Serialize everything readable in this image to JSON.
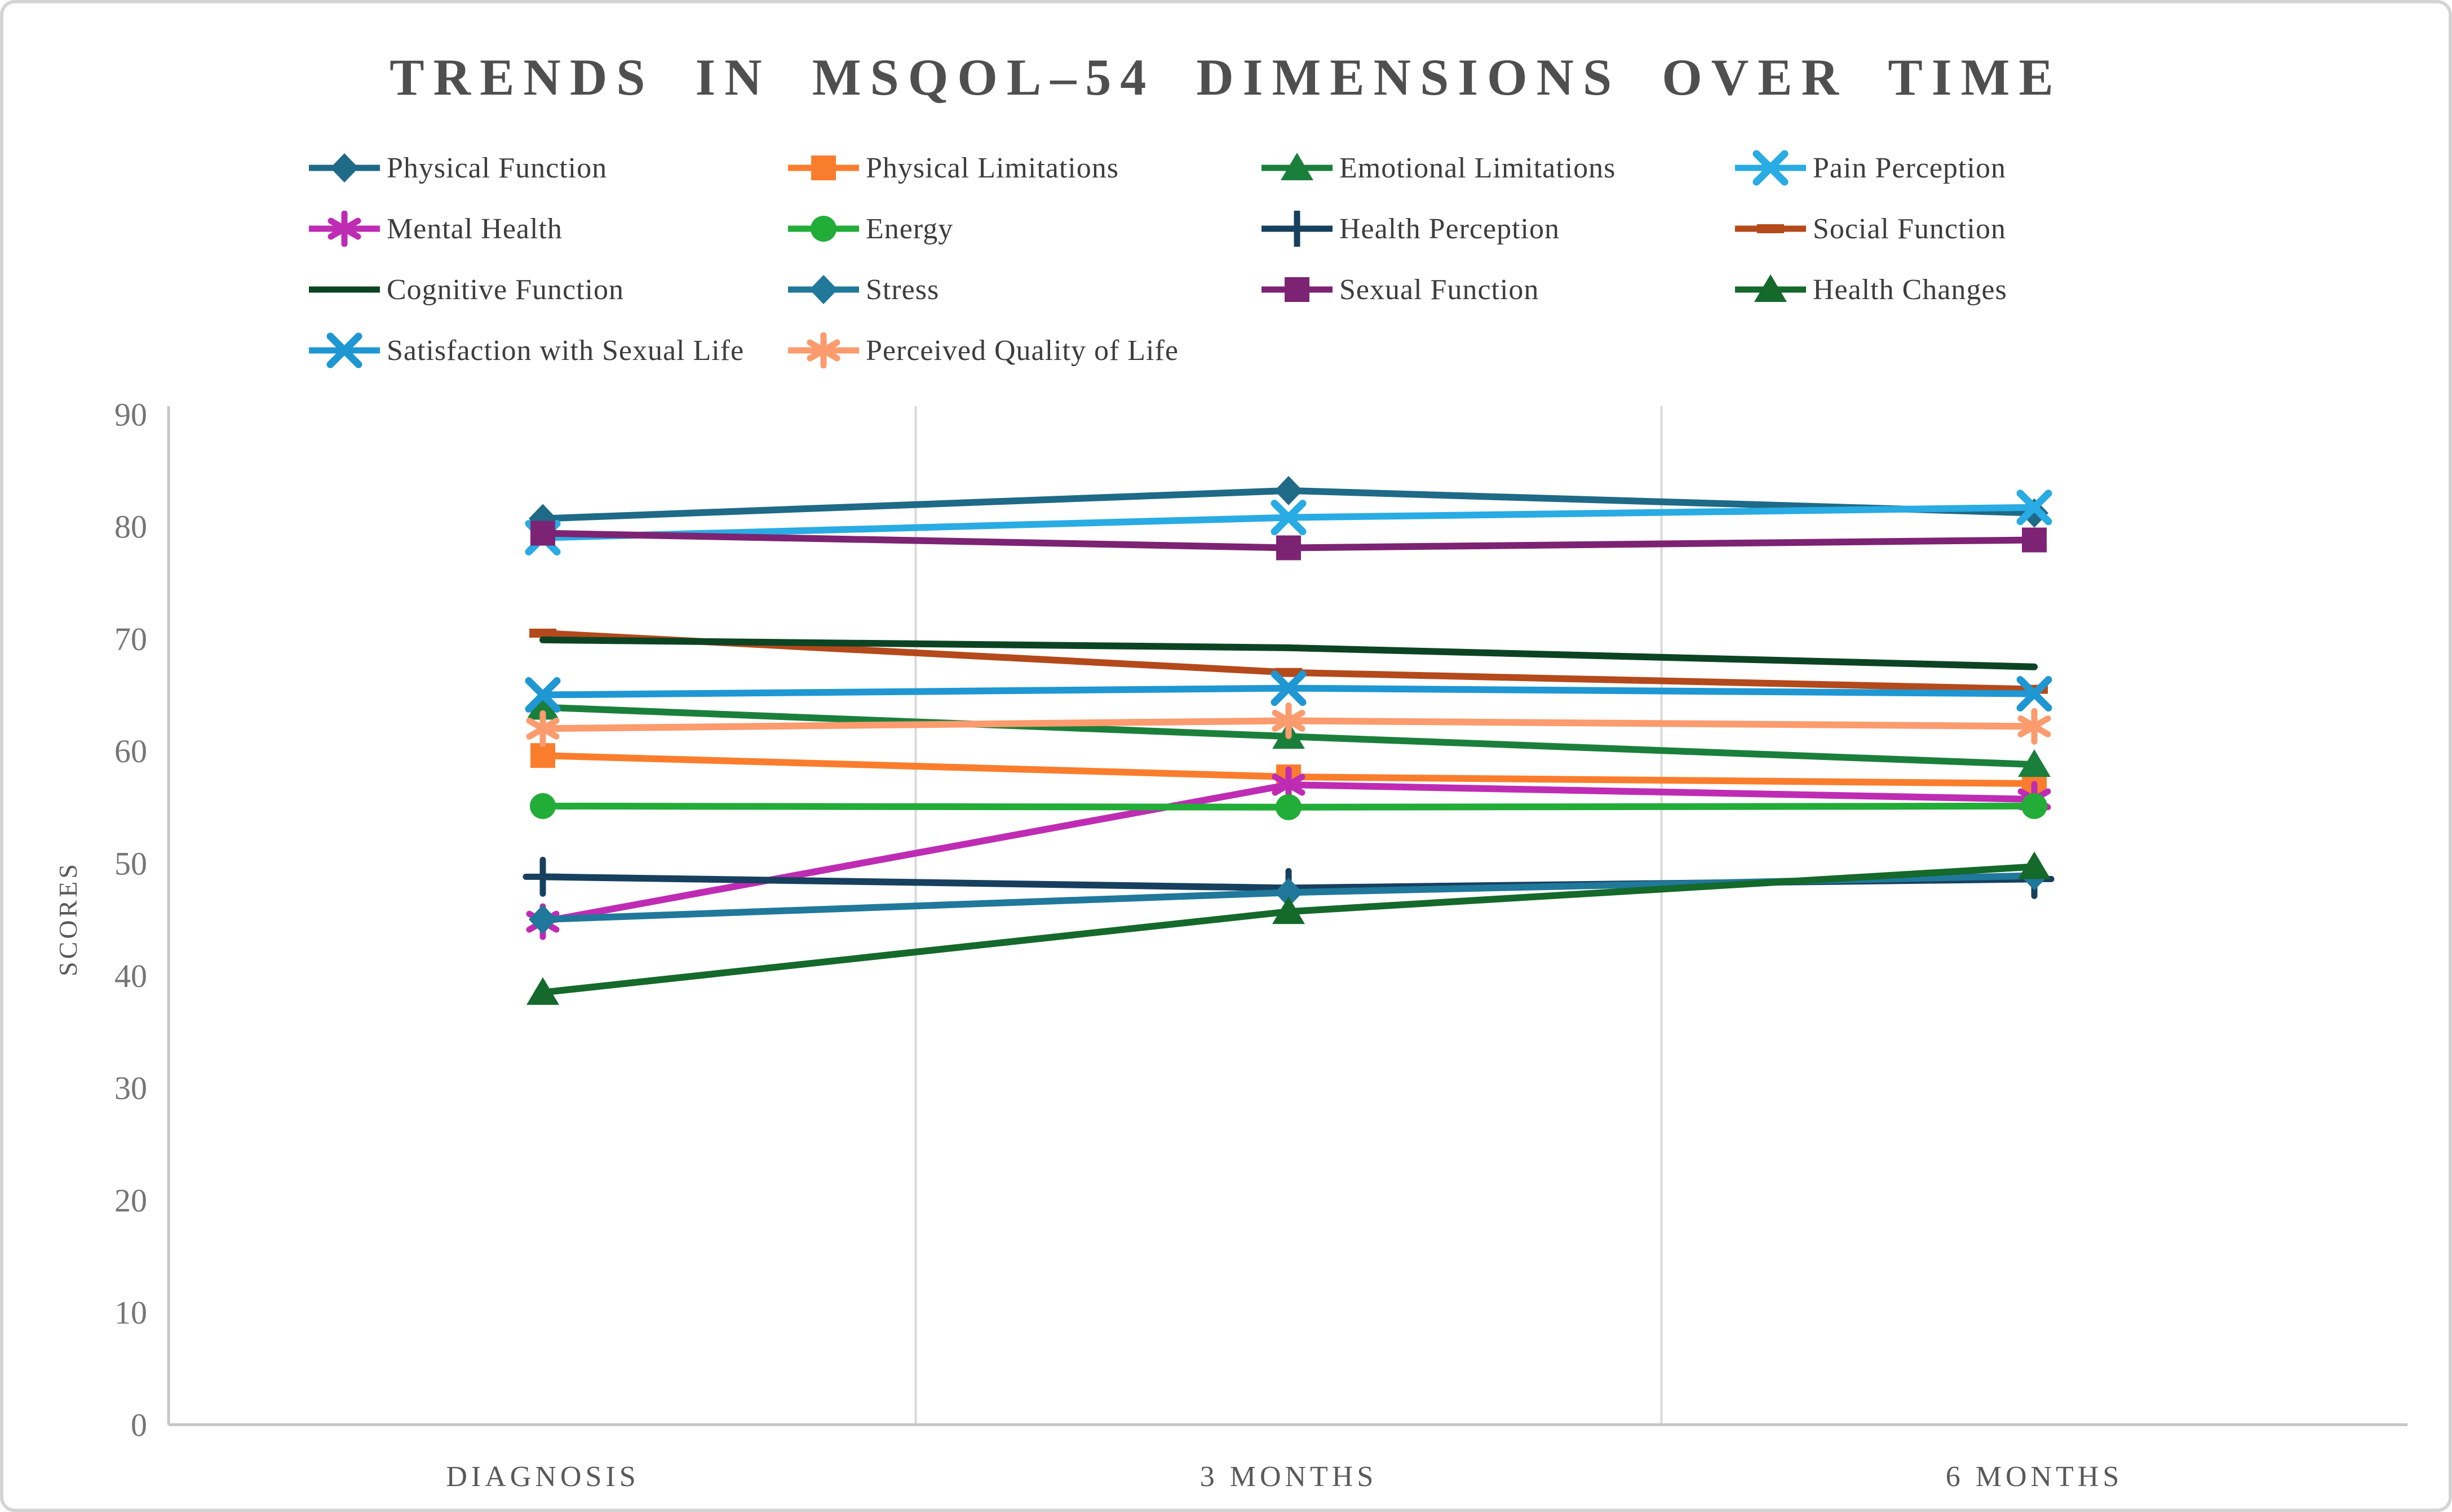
{
  "page": {
    "title": "TRENDS IN MSQOL–54 DIMENSIONS OVER TIME"
  },
  "chart_data": {
    "type": "line",
    "title": "TRENDS IN MSQOL–54 DIMENSIONS OVER TIME",
    "xlabel": "",
    "ylabel": "SCORES",
    "categories": [
      "DIAGNOSIS",
      "3 MONTHS",
      "6 MONTHS"
    ],
    "ylim": [
      0,
      90
    ],
    "yticks": [
      0,
      10,
      20,
      30,
      40,
      50,
      60,
      70,
      80,
      90
    ],
    "grid": "vertical-category-boundaries-only",
    "legend_position": "top",
    "axis_color": "#c6c6c6",
    "gridline_color": "#d9d9d9",
    "series": [
      {
        "name": "Physical Function",
        "color": "#1E6A87",
        "marker": "diamond",
        "values": [
          80.7,
          83.2,
          81.2
        ]
      },
      {
        "name": "Physical Limitations",
        "color": "#FA7D2D",
        "marker": "square",
        "values": [
          59.6,
          57.7,
          57.1
        ]
      },
      {
        "name": "Emotional Limitations",
        "color": "#1B7F3C",
        "marker": "triangle",
        "values": [
          63.9,
          61.3,
          58.8
        ]
      },
      {
        "name": "Pain Perception",
        "color": "#29ABE3",
        "marker": "x",
        "values": [
          79.0,
          80.8,
          81.7
        ]
      },
      {
        "name": "Mental Health",
        "color": "#BF2CB4",
        "marker": "asterisk",
        "values": [
          44.8,
          57.0,
          55.7
        ]
      },
      {
        "name": "Energy",
        "color": "#22AC38",
        "marker": "circle",
        "values": [
          55.1,
          55.0,
          55.1
        ]
      },
      {
        "name": "Health Perception",
        "color": "#17405E",
        "marker": "plus",
        "values": [
          48.8,
          47.8,
          48.6
        ]
      },
      {
        "name": "Social Function",
        "color": "#B4491B",
        "marker": "dash",
        "values": [
          70.5,
          67.0,
          65.5
        ]
      },
      {
        "name": "Cognitive Function",
        "color": "#0C4423",
        "marker": "none",
        "values": [
          69.9,
          69.2,
          67.5
        ]
      },
      {
        "name": "Stress",
        "color": "#20789B",
        "marker": "diamond",
        "values": [
          45.0,
          47.4,
          48.9
        ]
      },
      {
        "name": "Sexual Function",
        "color": "#7D2373",
        "marker": "square",
        "values": [
          79.4,
          78.1,
          78.8
        ]
      },
      {
        "name": "Health Changes",
        "color": "#14692B",
        "marker": "triangle",
        "values": [
          38.5,
          45.7,
          49.7
        ]
      },
      {
        "name": "Satisfaction with Sexual Life",
        "color": "#1E97D3",
        "marker": "x",
        "values": [
          65.0,
          65.6,
          65.1
        ]
      },
      {
        "name": "Perceived Quality of Life",
        "color": "#FB9B6E",
        "marker": "asterisk",
        "values": [
          62.0,
          62.7,
          62.2
        ]
      }
    ]
  }
}
